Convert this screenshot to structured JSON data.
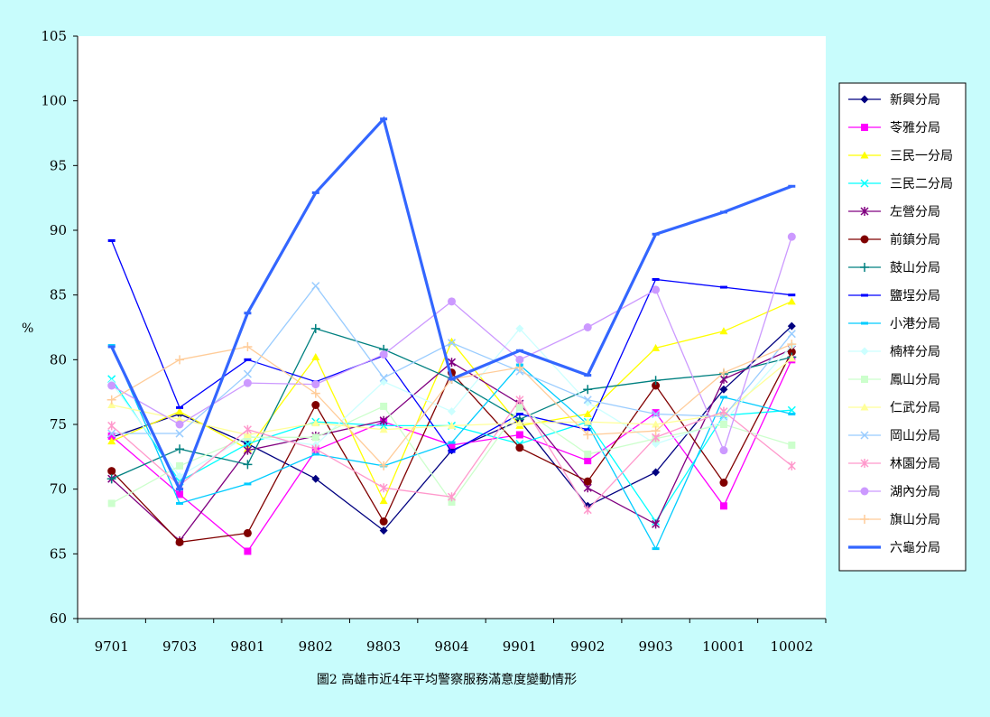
{
  "chart_data": {
    "type": "line",
    "title": "",
    "caption": "圖2  高雄市近4年平均警察服務滿意度變動情形",
    "xlabel": "",
    "ylabel": "%",
    "ylim": [
      60,
      105
    ],
    "ytick_step": 5,
    "grid": false,
    "legend_position": "right",
    "categories": [
      "9701",
      "9703",
      "9801",
      "9802",
      "9803",
      "9804",
      "9901",
      "9902",
      "9903",
      "10001",
      "10002"
    ],
    "series": [
      {
        "name": "新興分局",
        "color": "#000080",
        "marker": "diamond",
        "width": 1.3,
        "values": [
          74.0,
          75.8,
          73.5,
          70.8,
          66.8,
          73.0,
          75.3,
          68.7,
          71.3,
          77.7,
          82.6
        ]
      },
      {
        "name": "苓雅分局",
        "color": "#ff00ff",
        "marker": "square",
        "width": 1.3,
        "values": [
          74.1,
          69.6,
          65.2,
          73.0,
          75.2,
          73.4,
          74.2,
          72.2,
          75.9,
          68.7,
          80.0
        ]
      },
      {
        "name": "三民一分局",
        "color": "#ffff00",
        "marker": "triangle",
        "width": 1.3,
        "values": [
          73.7,
          76.0,
          73.1,
          80.2,
          69.1,
          81.4,
          74.9,
          75.8,
          80.9,
          82.2,
          84.5
        ]
      },
      {
        "name": "三民二分局",
        "color": "#00ffff",
        "marker": "x",
        "width": 1.3,
        "values": [
          78.5,
          70.6,
          73.5,
          75.2,
          74.9,
          74.9,
          73.5,
          75.2,
          67.5,
          75.7,
          76.1
        ]
      },
      {
        "name": "左營分局",
        "color": "#800080",
        "marker": "star",
        "width": 1.3,
        "values": [
          70.8,
          66.0,
          73.0,
          74.1,
          75.3,
          79.8,
          76.6,
          70.1,
          67.3,
          78.5,
          80.8
        ]
      },
      {
        "name": "前鎮分局",
        "color": "#800000",
        "marker": "circle",
        "width": 1.3,
        "values": [
          71.4,
          65.9,
          66.6,
          76.5,
          67.5,
          79.0,
          73.2,
          70.6,
          78.0,
          70.5,
          80.6
        ]
      },
      {
        "name": "鼓山分局",
        "color": "#008080",
        "marker": "plus",
        "width": 1.3,
        "values": [
          70.8,
          73.1,
          71.9,
          82.4,
          80.8,
          78.5,
          75.4,
          77.7,
          78.4,
          78.9,
          80.2
        ]
      },
      {
        "name": "鹽埕分局",
        "color": "#0000ff",
        "marker": "dash",
        "width": 1.3,
        "values": [
          89.2,
          76.3,
          80.0,
          78.3,
          80.3,
          72.9,
          75.8,
          74.6,
          86.2,
          85.6,
          85.0
        ]
      },
      {
        "name": "小港分局",
        "color": "#00ccff",
        "marker": "dash",
        "width": 1.3,
        "values": [
          81.1,
          68.9,
          70.4,
          72.7,
          71.8,
          73.6,
          79.6,
          75.0,
          65.4,
          77.1,
          75.8
        ]
      },
      {
        "name": "楠梓分局",
        "color": "#ccffff",
        "marker": "diamond",
        "width": 1.3,
        "values": [
          78.2,
          71.0,
          74.1,
          73.4,
          78.3,
          76.0,
          82.4,
          76.7,
          73.5,
          75.2,
          81.1
        ]
      },
      {
        "name": "鳳山分局",
        "color": "#ccffcc",
        "marker": "square",
        "width": 1.3,
        "values": [
          68.9,
          71.8,
          74.0,
          74.0,
          76.4,
          69.0,
          76.3,
          72.7,
          73.9,
          75.0,
          73.4
        ]
      },
      {
        "name": "仁武分局",
        "color": "#ffff99",
        "marker": "triangle",
        "width": 1.3,
        "values": [
          76.5,
          75.4,
          74.2,
          75.1,
          74.6,
          74.9,
          75.1,
          75.2,
          75.0,
          75.8,
          80.1
        ]
      },
      {
        "name": "岡山分局",
        "color": "#99ccff",
        "marker": "x",
        "width": 1.3,
        "values": [
          74.3,
          74.3,
          78.9,
          85.7,
          78.6,
          81.3,
          79.1,
          76.9,
          75.8,
          75.6,
          82.0
        ]
      },
      {
        "name": "林園分局",
        "color": "#ff99cc",
        "marker": "star",
        "width": 1.3,
        "values": [
          74.9,
          70.3,
          74.6,
          73.1,
          70.1,
          69.4,
          76.9,
          68.4,
          74.0,
          76.0,
          71.8
        ]
      },
      {
        "name": "湖內分局",
        "color": "#cc99ff",
        "marker": "circle",
        "width": 1.3,
        "values": [
          78.0,
          75.0,
          78.2,
          78.1,
          80.4,
          84.5,
          80.0,
          82.5,
          85.4,
          73.0,
          89.5
        ]
      },
      {
        "name": "旗山分局",
        "color": "#ffcc99",
        "marker": "plus",
        "width": 1.3,
        "values": [
          76.9,
          80.0,
          81.0,
          77.4,
          71.8,
          78.5,
          79.4,
          74.2,
          74.5,
          79.0,
          81.2
        ]
      },
      {
        "name": "六龜分局",
        "color": "#3366ff",
        "marker": "dash",
        "width": 3.2,
        "values": [
          81.0,
          70.0,
          83.6,
          92.9,
          98.6,
          78.5,
          80.7,
          78.8,
          89.7,
          91.4,
          93.4
        ]
      }
    ]
  }
}
